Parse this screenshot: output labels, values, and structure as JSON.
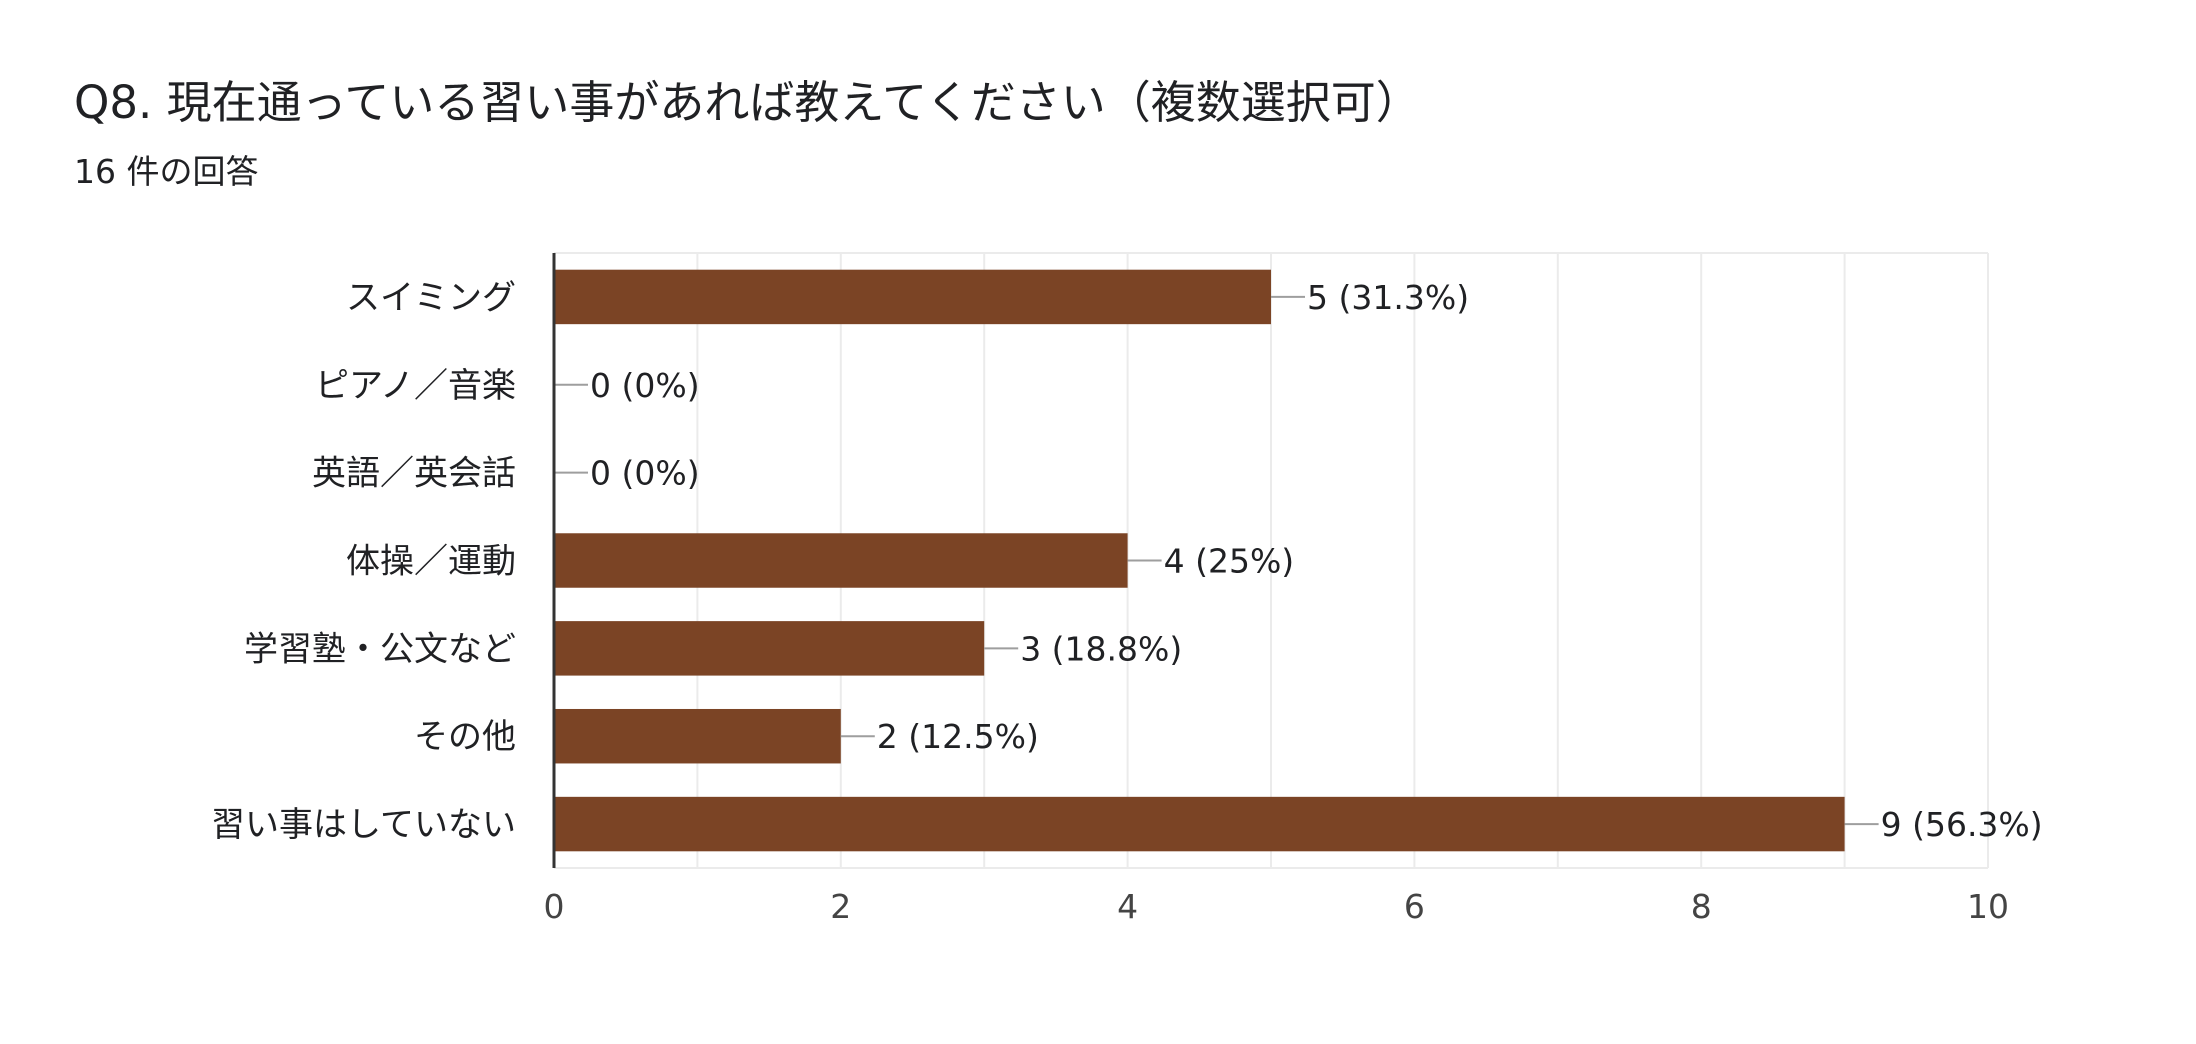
{
  "question": {
    "title": "Q8. 現在通っている習い事があれば教えてください（複数選択可）",
    "responses": "16 件の回答"
  },
  "colors": {
    "bar": "#7b4425",
    "grid": "#ebebeb",
    "axis": "#333333",
    "leader": "#9e9e9e",
    "text": "#202124",
    "tick_text": "#444444"
  },
  "chart_data": {
    "type": "bar",
    "orientation": "horizontal",
    "categories": [
      "スイミング",
      "ピアノ／音楽",
      "英語／英会話",
      "体操／運動",
      "学習塾・公文など",
      "その他",
      "習い事はしていない"
    ],
    "values": [
      5,
      0,
      0,
      4,
      3,
      2,
      9
    ],
    "data_labels": [
      "5 (31.3%)",
      "0 (0%)",
      "0 (0%)",
      "4 (25%)",
      "3 (18.8%)",
      "2 (12.5%)",
      "9 (56.3%)"
    ],
    "xlim": [
      0,
      10
    ],
    "x_ticks": [
      "0",
      "2",
      "4",
      "6",
      "8",
      "10"
    ],
    "grid": true,
    "legend": "none"
  }
}
